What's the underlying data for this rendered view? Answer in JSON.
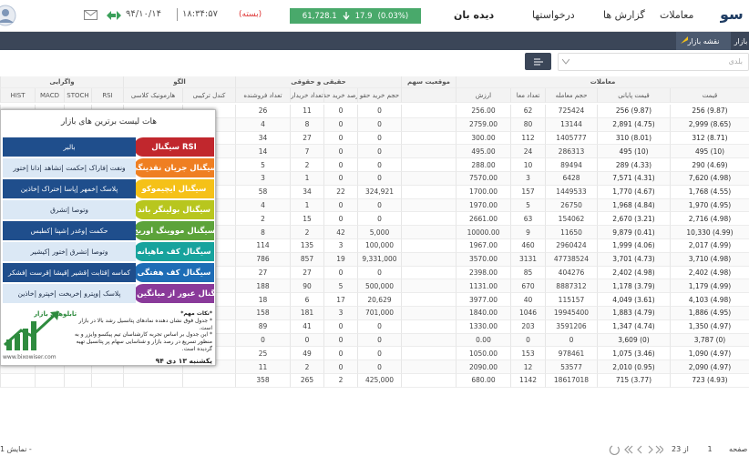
{
  "header": {
    "logo": "سو",
    "nav": [
      "معاملات",
      "گزارش ها",
      "درخواستها",
      "دیده بان"
    ],
    "index": {
      "value": "61,728.1",
      "change": "17.9",
      "percent": "(0.03%)"
    },
    "status": "(بسته)",
    "time": "۱۸:۳۴:۵۷",
    "date": "۹۴/۱۰/۱۴"
  },
  "subnav": {
    "tabs": [
      "بازار",
      "نقشه بازار"
    ]
  },
  "toolbar": {
    "search": "بلدی"
  },
  "table": {
    "groups": [
      "معاملات",
      "موقعیت سهم",
      "حقیقی و حقوقی",
      "الگو",
      "واگرایی"
    ],
    "columns": [
      "قیمت",
      "قیمت پایانی",
      "حجم معامله",
      "تعداد معا",
      "ارزش",
      "",
      "حجم خرید حقو",
      "درصد خرید حقو",
      "تعداد خریدار",
      "تعداد فروشنده",
      "کندل ترکیبی",
      "هارمونیک کلاسی",
      "RSI",
      "STOCH",
      "MACD",
      "HIST"
    ],
    "rows": [
      [
        "256 (9.87)",
        "256 (9.87)",
        "725424",
        "62",
        "256.00",
        "0",
        "0",
        "11",
        "26"
      ],
      [
        "2,999 (8.65)",
        "2,891 (4.75)",
        "13144",
        "80",
        "2759.00",
        "0",
        "0",
        "8",
        "4"
      ],
      [
        "312 (8.71)",
        "310 (8.01)",
        "1405777",
        "112",
        "300.00",
        "0",
        "0",
        "27",
        "34"
      ],
      [
        "495 (10)",
        "495 (10)",
        "286313",
        "24",
        "495.00",
        "0",
        "0",
        "7",
        "14"
      ],
      [
        "290 (4.69)",
        "289 (4.33)",
        "89494",
        "10",
        "288.00",
        "0",
        "0",
        "2",
        "5"
      ],
      [
        "7,620 (4.98)",
        "7,571 (4.31)",
        "6428",
        "3",
        "7570.00",
        "0",
        "0",
        "1",
        "3"
      ],
      [
        "1,768 (4.55)",
        "1,770 (4.67)",
        "1449533",
        "157",
        "1700.00",
        "324,921",
        "22",
        "34",
        "58"
      ],
      [
        "1,970 (4.95)",
        "1,968 (4.84)",
        "26750",
        "5",
        "1970.00",
        "0",
        "0",
        "1",
        "4"
      ],
      [
        "2,716 (4.98)",
        "2,670 (3.21)",
        "154062",
        "63",
        "2661.00",
        "0",
        "0",
        "15",
        "2"
      ],
      [
        "10,330 (4.99)",
        "9,879 (0.41)",
        "11650",
        "9",
        "10000.00",
        "5,000",
        "42",
        "2",
        "8"
      ],
      [
        "2,017 (4.99)",
        "1,999 (4.06)",
        "2960424",
        "460",
        "1967.00",
        "100,000",
        "3",
        "135",
        "114"
      ],
      [
        "3,710 (4.98)",
        "3,701 (4.73)",
        "47738524",
        "3131",
        "3570.00",
        "9,331,000",
        "19",
        "857",
        "786"
      ],
      [
        "2,402 (4.98)",
        "2,402 (4.98)",
        "404276",
        "85",
        "2398.00",
        "0",
        "0",
        "27",
        "27"
      ],
      [
        "1,179 (4.99)",
        "1,178 (3.79)",
        "8887312",
        "670",
        "1131.00",
        "500,000",
        "5",
        "90",
        "188"
      ],
      [
        "4,103 (4.98)",
        "4,049 (3.61)",
        "115157",
        "40",
        "3977.00",
        "20,629",
        "17",
        "6",
        "18"
      ],
      [
        "1,886 (4.95)",
        "1,883 (4.79)",
        "19945400",
        "1046",
        "1840.00",
        "701,000",
        "3",
        "181",
        "158"
      ],
      [
        "1,350 (4.97)",
        "1,347 (4.74)",
        "3591206",
        "203",
        "1330.00",
        "0",
        "0",
        "41",
        "89"
      ],
      [
        "3,787 (0)",
        "3,609 (0)",
        "0",
        "0",
        "0.00",
        "0",
        "0",
        "0",
        "0"
      ],
      [
        "1,090 (4.97)",
        "1,075 (3.46)",
        "978461",
        "153",
        "1050.00",
        "0",
        "0",
        "49",
        "25"
      ],
      [
        "2,090 (4.97)",
        "2,010 (0.95)",
        "53577",
        "12",
        "2090.00",
        "0",
        "0",
        "2",
        "11"
      ],
      [
        "723 (4.93)",
        "715 (3.77)",
        "18617018",
        "1142",
        "680.00",
        "425,000",
        "2",
        "265",
        "358"
      ]
    ]
  },
  "popup": {
    "title": "هات لیست برترین های بازار",
    "signals": [
      {
        "label": "سیگنال RSI",
        "color": "#c1272d",
        "stocks": "بالبر"
      },
      {
        "label": "سیگنال جریان نقدینگی",
        "color": "#ef7f22",
        "stocks": "ونفت |فاراک |حکمت |تشاهد |دانا |ختور"
      },
      {
        "label": "سیگنال ایچیموکو",
        "color": "#f5c118",
        "stocks": "پلاسک |خمهر |پاسا |ختراک |خاذین"
      },
      {
        "label": "سیگنال بولینگر باند",
        "color": "#b8c61e",
        "stocks": "وتوصا |تشرق"
      },
      {
        "label": "سیگنال مووینگ اوریج",
        "color": "#5ca33a",
        "stocks": "حکمت |وغدر |شپنا |کطبس"
      },
      {
        "label": "سیگنال کف ماهیانه",
        "color": "#17a39d",
        "stocks": "وتوصا |تشرق |ختور |کیشیر"
      },
      {
        "label": "سیگنال کف هفتگی",
        "color": "#1e6db6",
        "stocks": "کماسه |قثابت |قشیر |قیشا |قرست |فشکر"
      },
      {
        "label": "سیگنال عبور از میانگین ماه",
        "color": "#8a3a9a",
        "stocks": "پلاسک |وپترو |خریخت |خپترو |خاذین"
      }
    ],
    "notes_title": "*نکات مهم*",
    "notes": [
      "* جدول فوق نشان دهنده نمادهای پتانسیل رشد بالا در بازار است.",
      "* این جدول بر اساس تجربه کارشناسان تیم پیکسو وایزر و به منظور تسریع در رصد بازار و شناسایی سهام پر پتانسیل تهیه گردیده است."
    ],
    "date": "یکشنبه ۱۳ دی ۹۴",
    "brand": "تابلوهای بازار",
    "site": "www.bixowiser.com"
  },
  "footer": {
    "page_label": "صفحه",
    "page": "1",
    "of": "از 23",
    "showing": "نمایش 1 -"
  }
}
